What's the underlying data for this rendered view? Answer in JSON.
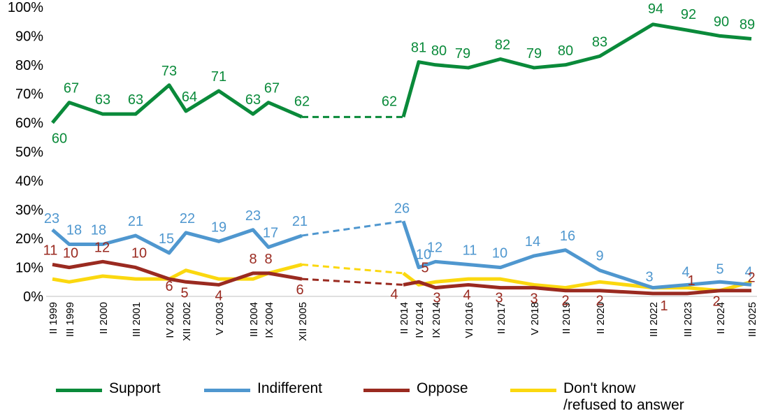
{
  "chart_data": {
    "type": "line",
    "title": "",
    "xlabel": "",
    "ylabel": "",
    "ylim": [
      0,
      100
    ],
    "y_ticks": [
      "0%",
      "10%",
      "20%",
      "30%",
      "40%",
      "50%",
      "60%",
      "70%",
      "80%",
      "90%",
      "100%"
    ],
    "categories": [
      "II 1999",
      "III 1999",
      "II 2000",
      "III 2001",
      "IV 2002",
      "XII 2002",
      "V 2003",
      "III 2004",
      "IX 2004",
      "XII 2005",
      "II 2014",
      "IV 2014",
      "IX 2014",
      "VI 2016",
      "II 2017",
      "V 2018",
      "II 2019",
      "II 2020",
      "III 2022",
      "III 2023",
      "II 2024",
      "III 2025"
    ],
    "gap": {
      "from": "XII 2005",
      "to": "II 2014",
      "style": "dashed"
    },
    "series": [
      {
        "name": "Support",
        "color": "#0a8a3a",
        "values": [
          60,
          67,
          63,
          63,
          73,
          64,
          71,
          63,
          67,
          62,
          62,
          81,
          80,
          79,
          82,
          79,
          80,
          83,
          94,
          92,
          90,
          89
        ]
      },
      {
        "name": "Indifferent",
        "color": "#4f97cf",
        "values": [
          23,
          18,
          18,
          21,
          15,
          22,
          19,
          23,
          17,
          21,
          26,
          10,
          12,
          11,
          10,
          14,
          16,
          9,
          3,
          4,
          5,
          4
        ]
      },
      {
        "name": "Oppose",
        "color": "#9a2a20",
        "values": [
          11,
          10,
          12,
          10,
          6,
          5,
          4,
          8,
          8,
          6,
          4,
          5,
          3,
          4,
          3,
          3,
          2,
          2,
          1,
          1,
          2,
          2
        ]
      },
      {
        "name": "Don't know\n/refused to answer",
        "color": "#fbd80f",
        "values": [
          6,
          5,
          7,
          6,
          6,
          9,
          6,
          6,
          8,
          11,
          8,
          4,
          5,
          6,
          6,
          4,
          3,
          5,
          3,
          3,
          2,
          5
        ],
        "data_labels": false
      }
    ],
    "legend_position": "bottom"
  }
}
